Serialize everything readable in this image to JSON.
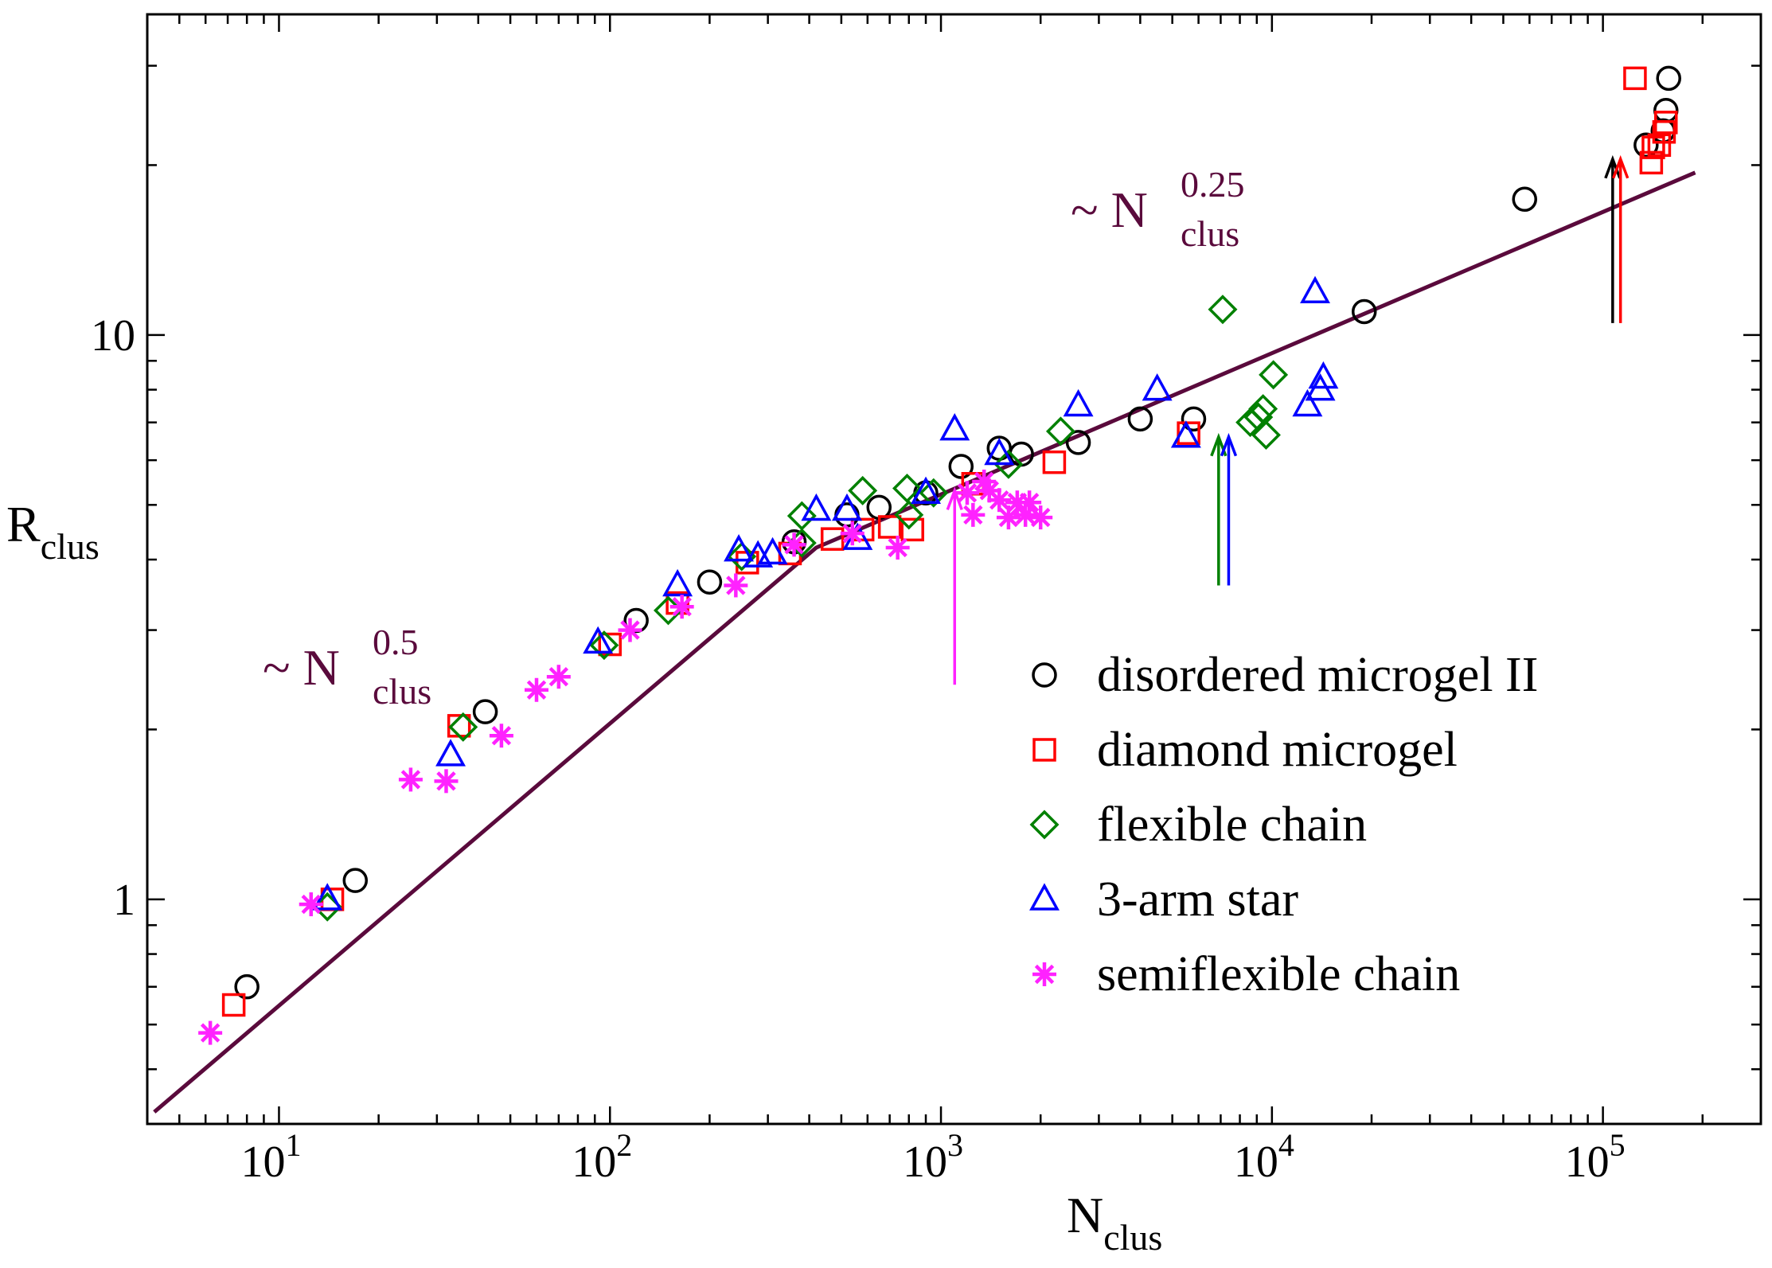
{
  "chart_data": {
    "type": "scatter",
    "title": "",
    "xlabel": {
      "main": "N",
      "sub": "clus"
    },
    "ylabel": {
      "main": "R",
      "sub": "clus"
    },
    "xscale": "log",
    "yscale": "log",
    "xlim": [
      4,
      300000
    ],
    "ylim": [
      0.4,
      37
    ],
    "grid": false,
    "legend_position": "bottom-right",
    "x_ticks": [
      {
        "value": 10,
        "base": "10",
        "exp": "1"
      },
      {
        "value": 100,
        "base": "10",
        "exp": "2"
      },
      {
        "value": 1000,
        "base": "10",
        "exp": "3"
      },
      {
        "value": 10000,
        "base": "10",
        "exp": "4"
      },
      {
        "value": 100000,
        "base": "10",
        "exp": "5"
      }
    ],
    "y_ticks": [
      {
        "value": 1,
        "label": "1"
      },
      {
        "value": 10,
        "label": "10"
      }
    ],
    "annotations": [
      {
        "id": "slope-low",
        "prefix": "~ ",
        "base": "N",
        "sup": "0.5",
        "sub": "clus",
        "color": "#5a0a3c"
      },
      {
        "id": "slope-high",
        "prefix": "~ ",
        "base": "N",
        "sup": "0.25",
        "sub": "clus",
        "color": "#5a0a3c"
      }
    ],
    "fit_line": {
      "color": "#5a0a3c",
      "segments": [
        {
          "exponent": 0.5,
          "x_from": 4.2,
          "x_to": 420,
          "points": [
            [
              4.2,
              0.42
            ],
            [
              420,
              4.2
            ]
          ]
        },
        {
          "exponent": 0.25,
          "x_from": 420,
          "x_to": 190000,
          "points": [
            [
              420,
              4.2
            ],
            [
              190000,
              19.4
            ]
          ]
        }
      ]
    },
    "arrows": [
      {
        "series": "semiflexible chain",
        "x": 1100,
        "y_from": 2.4,
        "y_to": 5.3,
        "color": "#ff22ff"
      },
      {
        "series": "flexible chain",
        "x": 6900,
        "y_from": 3.6,
        "y_to": 6.6,
        "color": "#008000"
      },
      {
        "series": "3-arm star",
        "x": 7400,
        "y_from": 3.6,
        "y_to": 6.6,
        "color": "#0000ff"
      },
      {
        "series": "disordered microgel II",
        "x": 107000,
        "y_from": 10.5,
        "y_to": 20.5,
        "color": "#000000"
      },
      {
        "series": "diamond microgel",
        "x": 113000,
        "y_from": 10.5,
        "y_to": 20.5,
        "color": "#ff0000"
      }
    ],
    "series": [
      {
        "name": "disordered microgel II",
        "marker": "circle",
        "color": "#000000",
        "points": [
          [
            8,
            0.7
          ],
          [
            17,
            1.08
          ],
          [
            42,
            2.15
          ],
          [
            120,
            3.12
          ],
          [
            200,
            3.65
          ],
          [
            360,
            4.3
          ],
          [
            520,
            4.8
          ],
          [
            650,
            4.95
          ],
          [
            900,
            5.25
          ],
          [
            1150,
            5.85
          ],
          [
            1500,
            6.3
          ],
          [
            1750,
            6.15
          ],
          [
            2600,
            6.45
          ],
          [
            4000,
            7.1
          ],
          [
            5800,
            7.1
          ],
          [
            19000,
            11
          ],
          [
            58000,
            17.4
          ],
          [
            135000,
            21.7
          ],
          [
            152000,
            23
          ],
          [
            155000,
            25
          ],
          [
            158000,
            28.5
          ]
        ]
      },
      {
        "name": "diamond microgel",
        "marker": "square",
        "color": "#ff0000",
        "points": [
          [
            7.3,
            0.65
          ],
          [
            14.5,
            1.0
          ],
          [
            35,
            2.03
          ],
          [
            100,
            2.83
          ],
          [
            160,
            3.35
          ],
          [
            260,
            3.95
          ],
          [
            350,
            4.1
          ],
          [
            470,
            4.35
          ],
          [
            580,
            4.52
          ],
          [
            700,
            4.57
          ],
          [
            820,
            4.52
          ],
          [
            1250,
            5.45
          ],
          [
            2200,
            5.95
          ],
          [
            5600,
            6.7
          ],
          [
            125000,
            28.5
          ],
          [
            140000,
            20.2
          ],
          [
            142000,
            21.5
          ],
          [
            148000,
            21.7
          ],
          [
            153000,
            22.9
          ],
          [
            155000,
            23.8
          ]
        ]
      },
      {
        "name": "flexible chain",
        "marker": "diamond",
        "color": "#008000",
        "points": [
          [
            14,
            0.97
          ],
          [
            36,
            2.02
          ],
          [
            96,
            2.82
          ],
          [
            150,
            3.25
          ],
          [
            250,
            4.05
          ],
          [
            380,
            4.28
          ],
          [
            380,
            4.78
          ],
          [
            580,
            5.3
          ],
          [
            790,
            5.35
          ],
          [
            800,
            4.8
          ],
          [
            950,
            5.25
          ],
          [
            1600,
            5.9
          ],
          [
            2300,
            6.75
          ],
          [
            7100,
            11.1
          ],
          [
            8600,
            7.0
          ],
          [
            9100,
            7.15
          ],
          [
            9400,
            7.4
          ],
          [
            9600,
            6.65
          ],
          [
            10100,
            8.5
          ]
        ]
      },
      {
        "name": "3-arm star",
        "marker": "triangle",
        "color": "#0000ff",
        "points": [
          [
            14,
            1.0
          ],
          [
            33,
            1.8
          ],
          [
            92,
            2.85
          ],
          [
            160,
            3.6
          ],
          [
            245,
            4.15
          ],
          [
            280,
            4.05
          ],
          [
            310,
            4.1
          ],
          [
            420,
            4.9
          ],
          [
            520,
            4.9
          ],
          [
            560,
            4.35
          ],
          [
            900,
            5.25
          ],
          [
            1100,
            6.8
          ],
          [
            1500,
            6.15
          ],
          [
            2600,
            7.5
          ],
          [
            4500,
            8.0
          ],
          [
            5500,
            6.6
          ],
          [
            12800,
            7.5
          ],
          [
            13500,
            11.9
          ],
          [
            14000,
            8.0
          ],
          [
            14300,
            8.4
          ]
        ]
      },
      {
        "name": "semiflexible chain",
        "marker": "asterisk",
        "color": "#ff22ff",
        "points": [
          [
            6.2,
            0.58
          ],
          [
            12.5,
            0.98
          ],
          [
            25,
            1.63
          ],
          [
            32,
            1.62
          ],
          [
            47,
            1.95
          ],
          [
            60,
            2.35
          ],
          [
            70,
            2.48
          ],
          [
            115,
            3.0
          ],
          [
            165,
            3.3
          ],
          [
            240,
            3.6
          ],
          [
            360,
            4.25
          ],
          [
            540,
            4.45
          ],
          [
            740,
            4.2
          ],
          [
            1200,
            5.25
          ],
          [
            1250,
            4.8
          ],
          [
            1350,
            5.5
          ],
          [
            1400,
            5.3
          ],
          [
            1500,
            5.1
          ],
          [
            1600,
            4.75
          ],
          [
            1700,
            5.05
          ],
          [
            1800,
            4.8
          ],
          [
            1850,
            5.05
          ],
          [
            2000,
            4.75
          ]
        ]
      }
    ]
  }
}
